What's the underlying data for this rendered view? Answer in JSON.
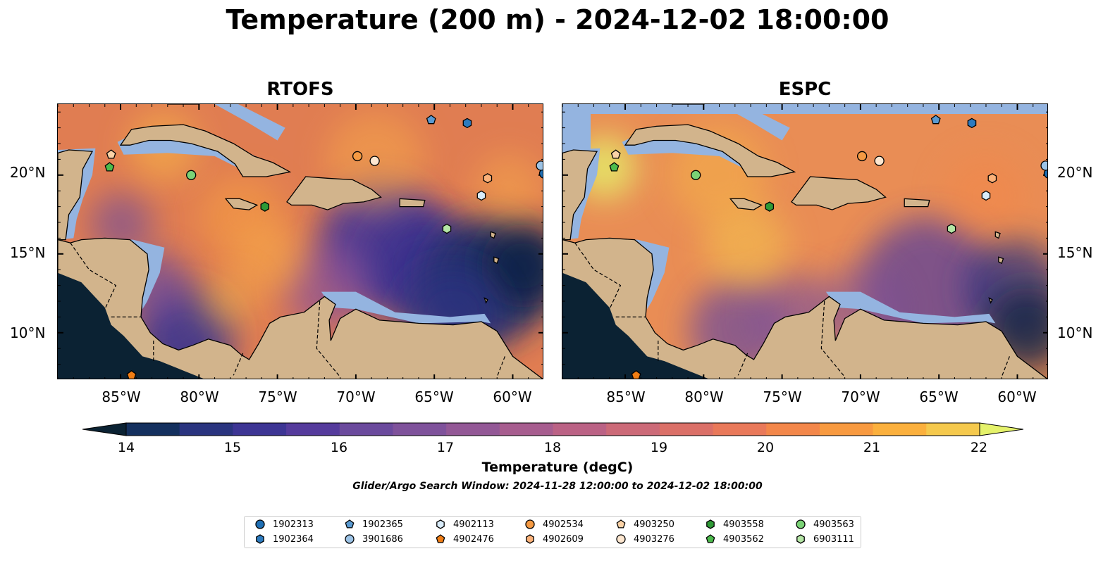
{
  "title": "Temperature (200 m) - 2024-12-02 18:00:00",
  "panels": [
    {
      "title": "RTOFS"
    },
    {
      "title": "ESPC"
    }
  ],
  "map": {
    "lon_range": [
      -89,
      -58
    ],
    "lat_range": [
      7,
      24.5
    ],
    "lat_labels": [
      "20°N",
      "15°N",
      "10°N"
    ],
    "lon_labels": [
      "85°W",
      "80°W",
      "75°W",
      "70°W",
      "65°W",
      "60°W"
    ],
    "land_color": "#d2b48c",
    "shelf_color": "#94b4e0",
    "deep_color": "#0b2233"
  },
  "colorbar": {
    "label": "Temperature (degC)",
    "ticks": [
      "14",
      "15",
      "16",
      "17",
      "18",
      "19",
      "20",
      "21",
      "22"
    ],
    "colors": [
      "#0b2233",
      "#14305e",
      "#2a347f",
      "#3d3594",
      "#553b9c",
      "#6b4a9d",
      "#7f529b",
      "#935896",
      "#a75d8f",
      "#bb6285",
      "#cc6a78",
      "#db7068",
      "#e9795a",
      "#f3874a",
      "#f89a40",
      "#fbb03d",
      "#f5c94d",
      "#e5f26b"
    ]
  },
  "search_window": "Glider/Argo Search Window: 2024-11-28 12:00:00 to 2024-12-02 18:00:00",
  "floats": [
    {
      "id": "1902313",
      "marker": "circle",
      "color": "#1f6fb4",
      "lon": -58.0,
      "lat": 20.1
    },
    {
      "id": "1902364",
      "marker": "hexagon",
      "color": "#2d7bbf",
      "lon": -62.9,
      "lat": 23.3
    },
    {
      "id": "1902365",
      "marker": "pentagon",
      "color": "#5a9ad1",
      "lon": -65.2,
      "lat": 23.5
    },
    {
      "id": "3901686",
      "marker": "circle",
      "color": "#9cc3e6",
      "lon": -58.2,
      "lat": 20.6
    },
    {
      "id": "4902113",
      "marker": "hexagon",
      "color": "#d9ecfa",
      "lon": -62.0,
      "lat": 18.7
    },
    {
      "id": "4902476",
      "marker": "pentagon",
      "color": "#f07d14",
      "lon": -84.3,
      "lat": 7.3
    },
    {
      "id": "4902534",
      "marker": "circle",
      "color": "#f59a43",
      "lon": -69.9,
      "lat": 21.2
    },
    {
      "id": "4902609",
      "marker": "hexagon",
      "color": "#fbb27a",
      "lon": -61.6,
      "lat": 19.8
    },
    {
      "id": "4903250",
      "marker": "pentagon",
      "color": "#fbd2a6",
      "lon": -85.6,
      "lat": 21.3
    },
    {
      "id": "4903276",
      "marker": "circle",
      "color": "#fde7d0",
      "lon": -68.8,
      "lat": 20.9
    },
    {
      "id": "4903558",
      "marker": "hexagon",
      "color": "#2e9a36",
      "lon": -75.8,
      "lat": 18.0
    },
    {
      "id": "4903562",
      "marker": "pentagon",
      "color": "#4cbb4c",
      "lon": -85.7,
      "lat": 20.5
    },
    {
      "id": "4903563",
      "marker": "circle",
      "color": "#7ad276",
      "lon": -80.5,
      "lat": 20.0
    },
    {
      "id": "6903111",
      "marker": "hexagon",
      "color": "#b5e6a6",
      "lon": -64.2,
      "lat": 16.6
    }
  ]
}
